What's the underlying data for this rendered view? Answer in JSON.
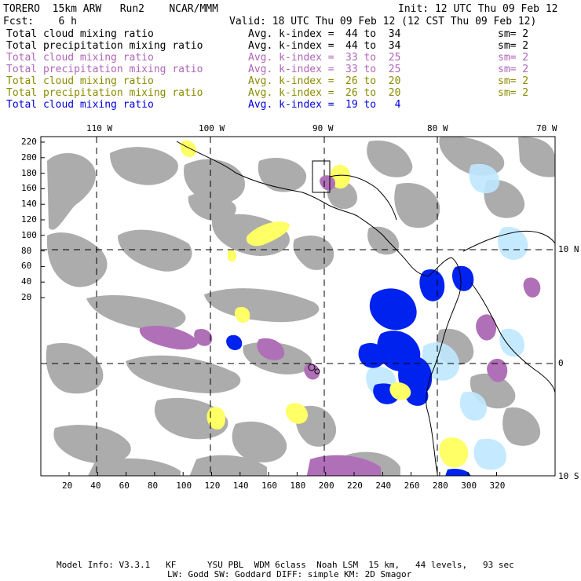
{
  "header": {
    "model": "TORERO  15km ARW   Run2    NCAR/MMM",
    "init": "Init: 12 UTC Thu 09 Feb 12",
    "fcst": "Fcst:    6 h",
    "valid": "Valid: 18 UTC Thu 09 Feb 12 (12 CST Thu 09 Feb 12)"
  },
  "legend": [
    {
      "field": "Total cloud mixing ratio",
      "label": "Avg. k-index =",
      "range": "44 to  34",
      "smooth": "sm= 2",
      "color": "#000000"
    },
    {
      "field": "Total precipitation mixing ratio",
      "label": "Avg. k-index =",
      "range": "44 to  34",
      "smooth": "sm= 2",
      "color": "#000000"
    },
    {
      "field": "Total cloud mixing ratio",
      "label": "Avg. k-index =",
      "range": "33 to  25",
      "smooth": "sm= 2",
      "color": "#b065b8"
    },
    {
      "field": "Total precipitation mixing ratio",
      "label": "Avg. k-index =",
      "range": "33 to  25",
      "smooth": "sm= 2",
      "color": "#b065b8"
    },
    {
      "field": "Total cloud mixing ratio",
      "label": "Avg. k-index =",
      "range": "26 to  20",
      "smooth": "sm= 2",
      "color": "#8a8a00"
    },
    {
      "field": "Total precipitation mixing ratio",
      "label": "Avg. k-index =",
      "range": "26 to  20",
      "smooth": "sm= 2",
      "color": "#8a8a00"
    },
    {
      "field": "Total cloud mixing ratio",
      "label": "Avg. k-index =",
      "range": "19 to   4",
      "smooth": "",
      "color": "#0000dd"
    }
  ],
  "axes": {
    "top_lon": [
      "110 W",
      "100 W",
      "90 W",
      "80 W",
      "70 W"
    ],
    "right_lat": [
      "10 N",
      "0",
      "10 S"
    ],
    "left_y": [
      "220",
      "200",
      "180",
      "160",
      "140",
      "120",
      "100",
      "80",
      "60",
      "40",
      "20"
    ],
    "bottom_x": [
      "20",
      "40",
      "60",
      "80",
      "100",
      "120",
      "140",
      "160",
      "180",
      "200",
      "220",
      "240",
      "260",
      "280",
      "300",
      "320"
    ]
  },
  "colors": {
    "gray": "#a8a8a8",
    "purple": "#b070b8",
    "yellow": "#ffff66",
    "lightblue": "#bfe8ff",
    "blue": "#0022ee"
  },
  "footer": {
    "line1": "Model Info: V3.3.1   KF      YSU PBL  WDM 6class  Noah LSM  15 km,   44 levels,   93 sec",
    "line2": "LW: Godd SW: Goddard DIFF: simple KM: 2D Smagor"
  }
}
